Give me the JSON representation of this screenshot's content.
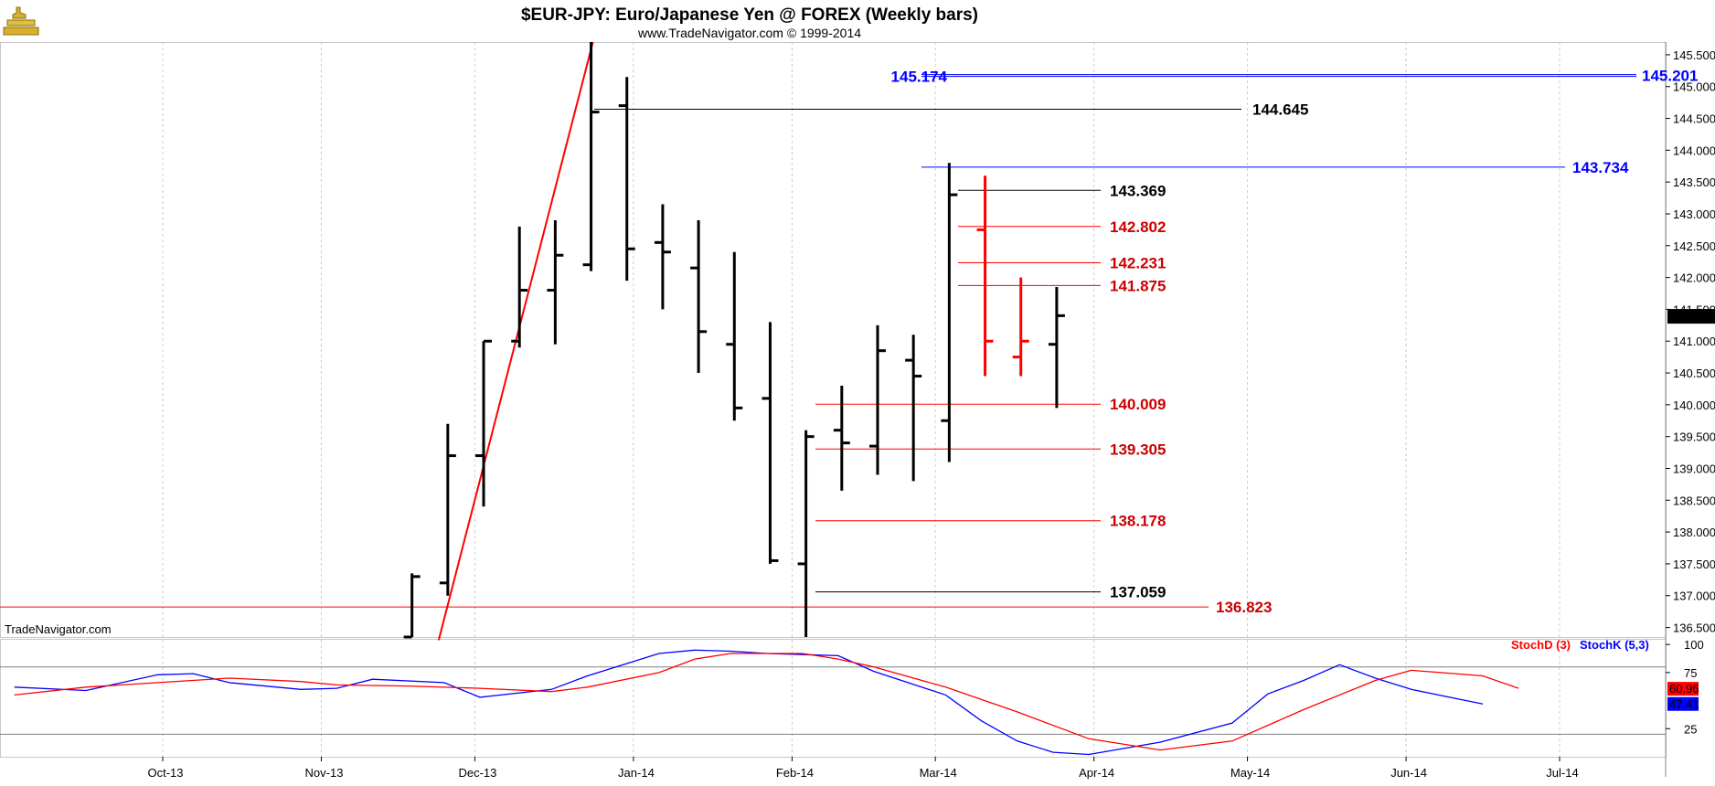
{
  "header": {
    "title": "$EUR-JPY:  Euro/Japanese Yen @ FOREX  (Weekly bars)",
    "subtitle": "www.TradeNavigator.com © 1999-2014",
    "watermark": "TradeNavigator.com"
  },
  "colors": {
    "background": "#ffffff",
    "frame": "#c8c8c8",
    "bars": "#000000",
    "bars_projected": "#ff0000",
    "red_level": "#ff0000",
    "red_label": "#cc0000",
    "blue_level": "#0000ff",
    "black_level": "#000000",
    "stochd": "#ff0000",
    "stochk": "#0000ff"
  },
  "chart_data": [
    {
      "type": "ohlc",
      "title": "$EUR-JPY:  Euro/Japanese Yen @ FOREX  (Weekly bars)",
      "ylim": [
        136.35,
        145.7
      ],
      "y_ticks": [
        "136.500",
        "137.000",
        "137.500",
        "138.000",
        "138.500",
        "139.000",
        "139.500",
        "140.000",
        "140.500",
        "141.000",
        "141.500",
        "142.000",
        "142.500",
        "143.000",
        "143.500",
        "144.000",
        "144.500",
        "145.000",
        "145.500"
      ],
      "x_ticks": [
        "Oct-13",
        "Nov-13",
        "Dec-13",
        "Jan-14",
        "Feb-14",
        "Mar-14",
        "Apr-14",
        "May-14",
        "Jun-14",
        "Jul-14"
      ],
      "last_price": "141.390",
      "bars": [
        {
          "week": "2013-11-18",
          "open": 136.35,
          "high": 137.35,
          "low": 136.3,
          "close": 137.3
        },
        {
          "week": "2013-11-25",
          "open": 137.2,
          "high": 139.7,
          "low": 137.0,
          "close": 139.2
        },
        {
          "week": "2013-12-02",
          "open": 139.2,
          "high": 141.0,
          "low": 138.4,
          "close": 141.0
        },
        {
          "week": "2013-12-09",
          "open": 141.0,
          "high": 142.8,
          "low": 140.9,
          "close": 141.8
        },
        {
          "week": "2013-12-16",
          "open": 141.8,
          "high": 142.9,
          "low": 140.95,
          "close": 142.35
        },
        {
          "week": "2013-12-23",
          "open": 142.2,
          "high": 145.7,
          "low": 142.1,
          "close": 144.6
        },
        {
          "week": "2013-12-30",
          "open": 144.7,
          "high": 145.15,
          "low": 141.95,
          "close": 142.45
        },
        {
          "week": "2014-01-06",
          "open": 142.55,
          "high": 143.15,
          "low": 141.5,
          "close": 142.4
        },
        {
          "week": "2014-01-13",
          "open": 142.15,
          "high": 142.9,
          "low": 140.5,
          "close": 141.15
        },
        {
          "week": "2014-01-20",
          "open": 140.95,
          "high": 142.4,
          "low": 139.75,
          "close": 139.95
        },
        {
          "week": "2014-01-27",
          "open": 140.1,
          "high": 141.3,
          "low": 137.5,
          "close": 137.55
        },
        {
          "week": "2014-02-03",
          "open": 137.5,
          "high": 139.6,
          "low": 136.3,
          "close": 139.5
        },
        {
          "week": "2014-02-10",
          "open": 139.6,
          "high": 140.3,
          "low": 138.65,
          "close": 139.4
        },
        {
          "week": "2014-02-17",
          "open": 139.35,
          "high": 141.25,
          "low": 138.9,
          "close": 140.85
        },
        {
          "week": "2014-02-24",
          "open": 140.7,
          "high": 141.1,
          "low": 138.8,
          "close": 140.45
        },
        {
          "week": "2014-03-03",
          "open": 139.75,
          "high": 143.8,
          "low": 139.1,
          "close": 143.3
        },
        {
          "week": "2014-03-10",
          "open": 142.75,
          "high": 143.6,
          "low": 140.45,
          "close": 141.0,
          "projected": true
        },
        {
          "week": "2014-03-17",
          "open": 140.75,
          "high": 142.0,
          "low": 140.45,
          "close": 141.0,
          "projected": true
        },
        {
          "week": "2014-03-24",
          "open": 140.95,
          "high": 141.85,
          "low": 139.95,
          "close": 141.4
        }
      ],
      "trendline": {
        "from": {
          "week": "2013-11-20",
          "price": 136.3
        },
        "to": {
          "week": "2013-12-23",
          "price": 145.7
        }
      },
      "levels": [
        {
          "value": 145.174,
          "label": "145.174",
          "right_label": "145.201",
          "kind": "blue"
        },
        {
          "value": 144.645,
          "label": "144.645",
          "kind": "black"
        },
        {
          "value": 143.734,
          "label": "143.734",
          "kind": "blue"
        },
        {
          "value": 143.369,
          "label": "143.369",
          "kind": "black"
        },
        {
          "value": 142.802,
          "label": "142.802",
          "kind": "red"
        },
        {
          "value": 142.231,
          "label": "142.231",
          "kind": "red"
        },
        {
          "value": 141.875,
          "label": "141.875",
          "kind": "red"
        },
        {
          "value": 140.009,
          "label": "140.009",
          "kind": "red"
        },
        {
          "value": 139.305,
          "label": "139.305",
          "kind": "red"
        },
        {
          "value": 138.178,
          "label": "138.178",
          "kind": "red"
        },
        {
          "value": 137.059,
          "label": "137.059",
          "kind": "black"
        },
        {
          "value": 136.823,
          "label": "136.823",
          "kind": "red"
        }
      ]
    },
    {
      "type": "line",
      "legend": [
        "StochD (3)",
        "StochK (5,3)"
      ],
      "ylim": [
        0,
        105
      ],
      "y_ticks": [
        "100",
        "75",
        "25"
      ],
      "reference_lines": [
        80,
        20
      ],
      "last_values": {
        "stochd": "60.96",
        "stochk": "47.41"
      },
      "series": [
        {
          "name": "StochK (5,3)",
          "color": "#0000ff",
          "points": [
            [
              "2013-09-02",
              62
            ],
            [
              "2013-09-16",
              59
            ],
            [
              "2013-09-30",
              73
            ],
            [
              "2013-10-07",
              74
            ],
            [
              "2013-10-14",
              66
            ],
            [
              "2013-10-28",
              60
            ],
            [
              "2013-11-04",
              61
            ],
            [
              "2013-11-11",
              69
            ],
            [
              "2013-11-25",
              66
            ],
            [
              "2013-12-02",
              53
            ],
            [
              "2013-12-16",
              60
            ],
            [
              "2013-12-23",
              72
            ],
            [
              "2014-01-06",
              92
            ],
            [
              "2014-01-13",
              95
            ],
            [
              "2014-01-20",
              94
            ],
            [
              "2014-01-27",
              92
            ],
            [
              "2014-02-10",
              90
            ],
            [
              "2014-02-17",
              76
            ],
            [
              "2014-03-03",
              55
            ],
            [
              "2014-03-10",
              32
            ],
            [
              "2014-03-17",
              14
            ],
            [
              "2014-03-24",
              4
            ],
            [
              "2014-03-31",
              2
            ],
            [
              "2014-04-14",
              13
            ],
            [
              "2014-04-28",
              30
            ],
            [
              "2014-05-05",
              56
            ],
            [
              "2014-05-12",
              68
            ],
            [
              "2014-05-19",
              82
            ],
            [
              "2014-05-26",
              70
            ],
            [
              "2014-06-02",
              60
            ],
            [
              "2014-06-16",
              47
            ]
          ]
        },
        {
          "name": "StochD (3)",
          "color": "#ff0000",
          "points": [
            [
              "2013-09-02",
              55
            ],
            [
              "2013-09-16",
              62
            ],
            [
              "2013-09-30",
              66
            ],
            [
              "2013-10-14",
              70
            ],
            [
              "2013-10-28",
              67
            ],
            [
              "2013-11-04",
              64
            ],
            [
              "2013-11-18",
              63
            ],
            [
              "2013-12-02",
              61
            ],
            [
              "2013-12-16",
              58
            ],
            [
              "2013-12-23",
              62
            ],
            [
              "2014-01-06",
              75
            ],
            [
              "2014-01-13",
              87
            ],
            [
              "2014-01-20",
              92
            ],
            [
              "2014-02-03",
              92
            ],
            [
              "2014-02-10",
              87
            ],
            [
              "2014-02-17",
              80
            ],
            [
              "2014-03-03",
              62
            ],
            [
              "2014-03-17",
              40
            ],
            [
              "2014-03-31",
              16
            ],
            [
              "2014-04-14",
              6
            ],
            [
              "2014-04-28",
              14
            ],
            [
              "2014-05-12",
              42
            ],
            [
              "2014-05-26",
              68
            ],
            [
              "2014-06-02",
              77
            ],
            [
              "2014-06-16",
              72
            ],
            [
              "2014-06-23",
              61
            ]
          ]
        }
      ]
    }
  ]
}
